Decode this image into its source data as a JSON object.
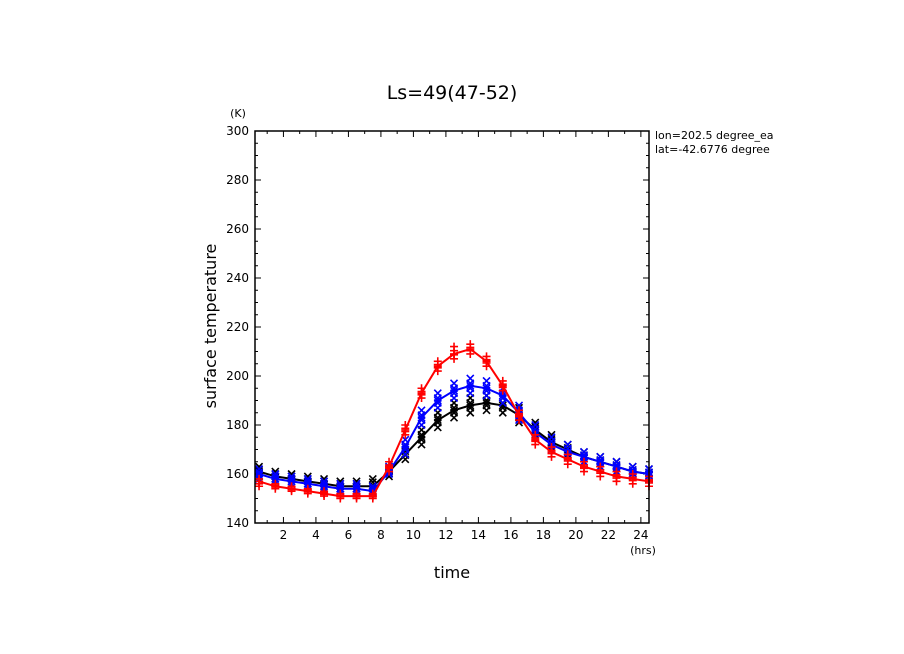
{
  "chart_data": {
    "type": "line",
    "title": "Ls=49(47-52)",
    "xlabel": "time",
    "ylabel": "surface temperature",
    "x_unit": "(hrs)",
    "y_unit": "(K)",
    "xlim": [
      0.25,
      24.5
    ],
    "ylim": [
      140,
      300
    ],
    "x_ticks": [
      2,
      4,
      6,
      8,
      10,
      12,
      14,
      16,
      18,
      20,
      22,
      24
    ],
    "y_ticks": [
      140,
      160,
      180,
      200,
      220,
      240,
      260,
      280,
      300
    ],
    "annotations": [
      "lon=202.5 degree_ea",
      "lat=-42.6776 degree"
    ],
    "grid": false,
    "x": [
      0.5,
      1.5,
      2.5,
      3.5,
      4.5,
      5.5,
      6.5,
      7.5,
      8.5,
      9.5,
      10.5,
      11.5,
      12.5,
      13.5,
      14.5,
      15.5,
      16.5,
      17.5,
      18.5,
      19.5,
      20.5,
      21.5,
      22.5,
      23.5,
      24.5
    ],
    "series": [
      {
        "color": "#000000",
        "marker": "x",
        "values": [
          161,
          159,
          158,
          157,
          156,
          155,
          155,
          155,
          161,
          168,
          175,
          182,
          186,
          188,
          189,
          188,
          184,
          178,
          173,
          170,
          167,
          165,
          163,
          161,
          160
        ],
        "samples": [
          [
            163,
            159
          ],
          [
            161,
            158
          ],
          [
            160,
            157
          ],
          [
            159,
            156
          ],
          [
            158,
            155
          ],
          [
            157,
            154
          ],
          [
            157,
            154
          ],
          [
            158,
            154
          ],
          [
            163,
            159
          ],
          [
            171,
            166
          ],
          [
            178,
            172
          ],
          [
            185,
            179
          ],
          [
            189,
            183
          ],
          [
            191,
            185
          ],
          [
            192,
            186
          ],
          [
            191,
            185
          ],
          [
            187,
            181
          ],
          [
            181,
            176
          ],
          [
            176,
            171
          ],
          [
            172,
            168
          ],
          [
            169,
            165
          ],
          [
            167,
            163
          ],
          [
            165,
            161
          ],
          [
            163,
            159
          ],
          [
            162,
            158
          ]
        ]
      },
      {
        "color": "#0000ff",
        "marker": "x",
        "values": [
          160,
          158,
          157,
          156,
          155,
          154,
          154,
          153,
          161,
          171,
          183,
          190,
          194,
          196,
          195,
          192,
          185,
          177,
          172,
          169,
          167,
          165,
          163,
          161,
          160
        ],
        "samples": [
          [
            162,
            158
          ],
          [
            160,
            157
          ],
          [
            159,
            156
          ],
          [
            158,
            155
          ],
          [
            157,
            154
          ],
          [
            156,
            153
          ],
          [
            156,
            153
          ],
          [
            155,
            152
          ],
          [
            163,
            160
          ],
          [
            174,
            168
          ],
          [
            186,
            180
          ],
          [
            193,
            187
          ],
          [
            197,
            191
          ],
          [
            199,
            193
          ],
          [
            198,
            192
          ],
          [
            195,
            189
          ],
          [
            188,
            182
          ],
          [
            180,
            175
          ],
          [
            175,
            170
          ],
          [
            172,
            167
          ],
          [
            169,
            165
          ],
          [
            167,
            163
          ],
          [
            165,
            161
          ],
          [
            163,
            159
          ],
          [
            162,
            158
          ]
        ]
      },
      {
        "color": "#ff0000",
        "marker": "+",
        "values": [
          157,
          155,
          154,
          153,
          152,
          151,
          151,
          151,
          163,
          178,
          193,
          204,
          209,
          211,
          206,
          196,
          184,
          174,
          169,
          166,
          163,
          161,
          159,
          158,
          157
        ],
        "samples": [
          [
            158,
            155
          ],
          [
            156,
            154
          ],
          [
            155,
            153
          ],
          [
            154,
            152
          ],
          [
            153,
            151
          ],
          [
            152,
            150
          ],
          [
            152,
            150
          ],
          [
            152,
            150
          ],
          [
            165,
            161
          ],
          [
            180,
            176
          ],
          [
            195,
            191
          ],
          [
            206,
            202
          ],
          [
            212,
            207
          ],
          [
            213,
            209
          ],
          [
            208,
            204
          ],
          [
            198,
            194
          ],
          [
            186,
            182
          ],
          [
            176,
            172
          ],
          [
            171,
            167
          ],
          [
            168,
            164
          ],
          [
            165,
            161
          ],
          [
            163,
            159
          ],
          [
            161,
            157
          ],
          [
            160,
            156
          ],
          [
            159,
            155
          ]
        ]
      }
    ]
  }
}
